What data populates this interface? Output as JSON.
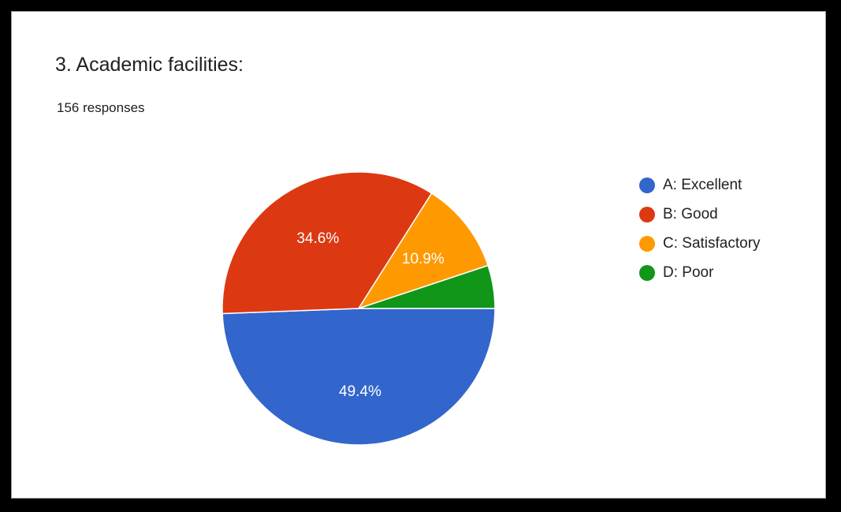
{
  "header": {
    "title": "3. Academic facilities:",
    "subtitle": "156 responses"
  },
  "chart_data": {
    "type": "pie",
    "title": "3. Academic facilities:",
    "categories": [
      "A: Excellent",
      "B: Good",
      "C: Satisfactory",
      "D: Poor"
    ],
    "values": [
      49.4,
      34.6,
      10.9,
      5.1
    ],
    "data_labels": [
      "49.4%",
      "34.6%",
      "10.9%",
      ""
    ],
    "colors": [
      "#3366cc",
      "#dc3912",
      "#ff9900",
      "#109618"
    ],
    "legend_position": "right",
    "start": "3 o'clock, clockwise"
  }
}
